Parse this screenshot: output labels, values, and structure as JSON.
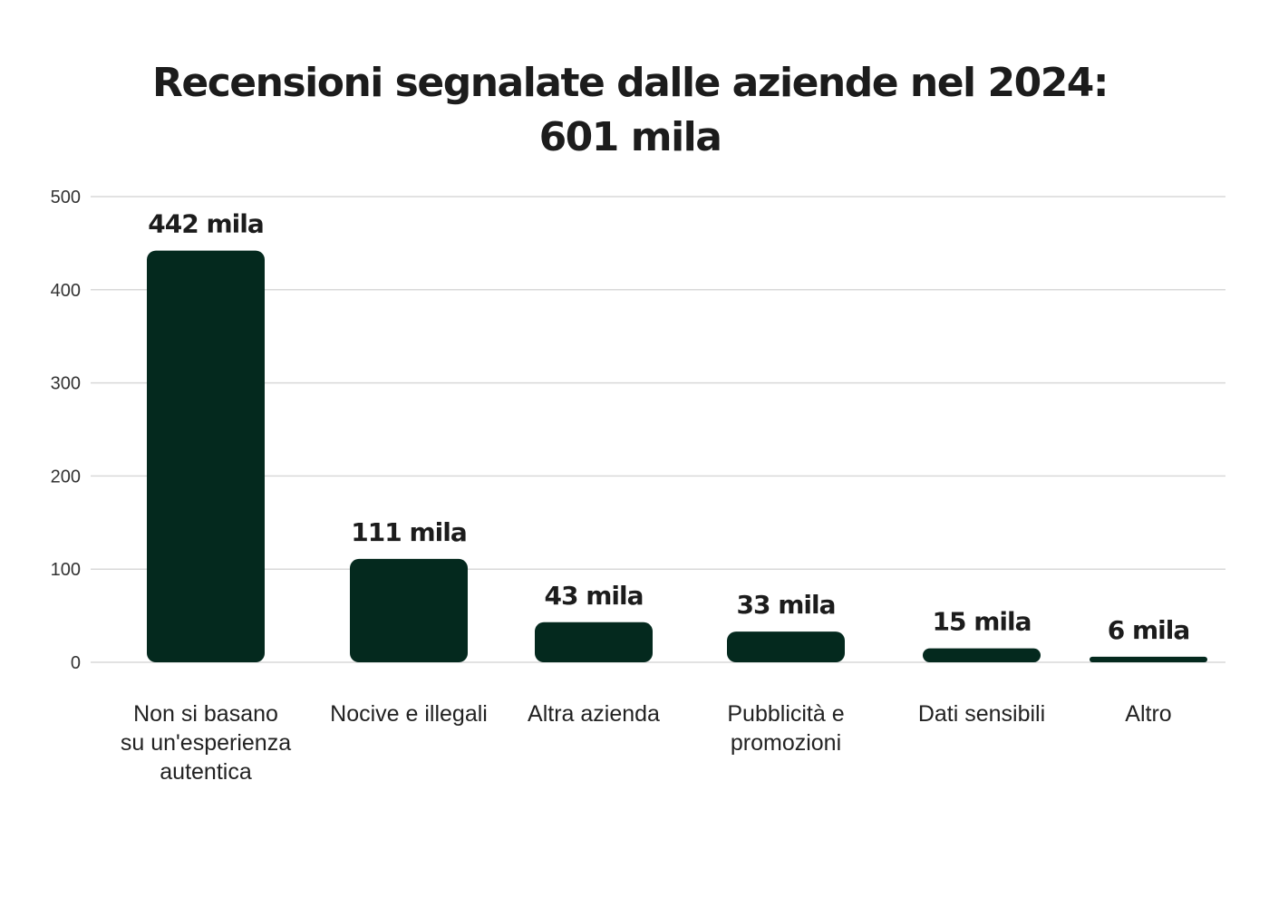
{
  "chart_data": {
    "type": "bar",
    "title": "Recensioni segnalate dalle aziende nel 2024:\n601 mila",
    "categories": [
      "Non si basano\nsu un'esperienza\nautentica",
      "Nocive e illegali",
      "Altra azienda",
      "Pubblicità e\npromozioni",
      "Dati sensibili",
      "Altro"
    ],
    "values": [
      442,
      111,
      43,
      33,
      15,
      6
    ],
    "data_labels": [
      "442 mila",
      "111 mila",
      "43 mila",
      "33 mila",
      "15 mila",
      "6 mila"
    ],
    "xlabel": "",
    "ylabel": "",
    "ylim": [
      0,
      500
    ],
    "yticks": [
      0,
      100,
      200,
      300,
      400,
      500
    ],
    "grid": true,
    "bar_color": "#04291e",
    "grid_color": "#d9d9d9"
  }
}
